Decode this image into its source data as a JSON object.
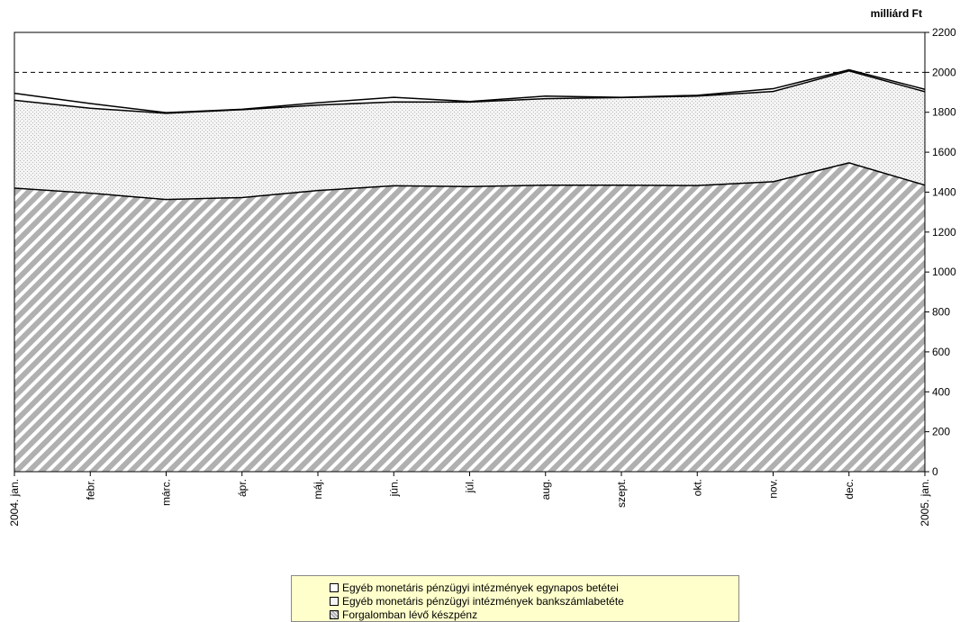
{
  "chart_data": {
    "type": "area",
    "stacked": true,
    "ylabel": "milliárd Ft",
    "ylim": [
      0,
      2200
    ],
    "yticks": [
      0,
      200,
      400,
      600,
      800,
      1000,
      1200,
      1400,
      1600,
      1800,
      2000,
      2200
    ],
    "reference_line": 2000,
    "categories": [
      "2004. jan.",
      "febr.",
      "márc.",
      "ápr.",
      "máj.",
      "jún.",
      "júl.",
      "aug.",
      "szept.",
      "okt.",
      "nov.",
      "dec.",
      "2005. jan."
    ],
    "series": [
      {
        "name": "Forgalomban lévő készpénz",
        "values": [
          1420,
          1395,
          1363,
          1373,
          1408,
          1432,
          1428,
          1435,
          1435,
          1433,
          1452,
          1547,
          1435
        ],
        "color": "#b0b0b0",
        "pattern": "diagonal-stripes"
      },
      {
        "name": "Egyéb monetáris pénzügyi intézmények bankszámlabetéte",
        "values": [
          440,
          425,
          432,
          440,
          428,
          420,
          423,
          433,
          439,
          448,
          452,
          460,
          468
        ],
        "color": "#e8e8e8",
        "pattern": "dots"
      },
      {
        "name": "Egyéb monetáris pénzügyi intézmények egynapos betétei",
        "values": [
          35,
          24,
          3,
          2,
          12,
          23,
          3,
          13,
          1,
          4,
          14,
          6,
          12
        ],
        "color": "#ffffff",
        "pattern": "none"
      }
    ]
  },
  "legend": {
    "items": [
      "Egyéb monetáris pénzügyi intézmények egynapos betétei",
      "Egyéb monetáris pénzügyi intézmények bankszámlabetéte",
      "Forgalomban lévő készpénz"
    ]
  }
}
